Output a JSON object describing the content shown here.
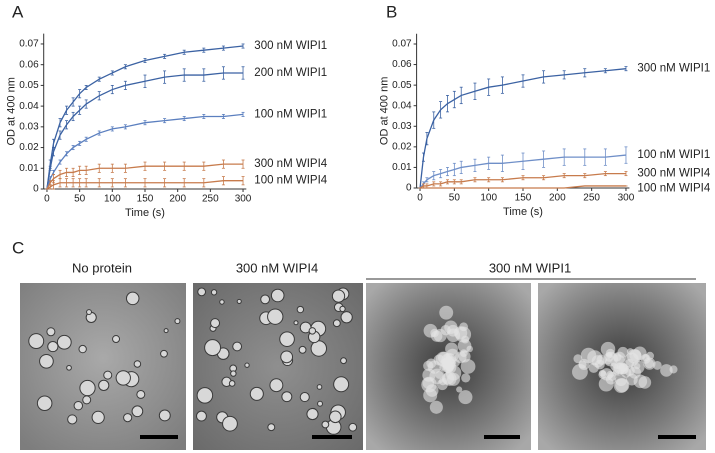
{
  "panel_labels": [
    "A",
    "B",
    "C"
  ],
  "chart_data": [
    {
      "type": "line",
      "xlabel": "Time (s)",
      "ylabel": "OD at 400 nm",
      "x": [
        0,
        5,
        10,
        20,
        30,
        40,
        50,
        60,
        80,
        100,
        120,
        150,
        180,
        210,
        240,
        270,
        300
      ],
      "xlim": [
        -5,
        305
      ],
      "xticks": [
        0,
        50,
        100,
        150,
        200,
        250,
        300
      ],
      "ylim": [
        0,
        0.075
      ],
      "yticks": [
        0,
        0.01,
        0.02,
        0.03,
        0.04,
        0.05,
        0.06,
        0.07
      ],
      "series": [
        {
          "name": "300 nM WIPI1",
          "color": "#3b62a3",
          "values": [
            0,
            0.012,
            0.022,
            0.032,
            0.038,
            0.042,
            0.046,
            0.049,
            0.053,
            0.056,
            0.059,
            0.062,
            0.064,
            0.066,
            0.067,
            0.068,
            0.069
          ],
          "errors": [
            0,
            0.002,
            0.002,
            0.002,
            0.002,
            0.002,
            0.002,
            0.001,
            0.001,
            0.001,
            0.001,
            0.001,
            0.001,
            0.001,
            0.001,
            0.001,
            0.001
          ]
        },
        {
          "name": "200 nM WIPI1",
          "color": "#3b62a3",
          "values": [
            0,
            0.01,
            0.018,
            0.026,
            0.031,
            0.035,
            0.038,
            0.041,
            0.045,
            0.048,
            0.05,
            0.052,
            0.054,
            0.055,
            0.055,
            0.056,
            0.056
          ],
          "errors": [
            0,
            0.001,
            0.002,
            0.002,
            0.002,
            0.002,
            0.002,
            0.002,
            0.002,
            0.002,
            0.002,
            0.003,
            0.003,
            0.003,
            0.003,
            0.003,
            0.003
          ]
        },
        {
          "name": "100 nM WIPI1",
          "color": "#5b7fbf",
          "values": [
            0,
            0.005,
            0.008,
            0.013,
            0.017,
            0.02,
            0.022,
            0.024,
            0.027,
            0.029,
            0.03,
            0.032,
            0.033,
            0.034,
            0.035,
            0.035,
            0.036
          ],
          "errors": [
            0,
            0.001,
            0.001,
            0.001,
            0.001,
            0.001,
            0.001,
            0.001,
            0.001,
            0.001,
            0.001,
            0.001,
            0.001,
            0.001,
            0.001,
            0.001,
            0.001
          ]
        },
        {
          "name": "300 nM WIPI4",
          "color": "#c77b4c",
          "values": [
            0,
            0.003,
            0.005,
            0.007,
            0.008,
            0.008,
            0.009,
            0.009,
            0.01,
            0.01,
            0.01,
            0.011,
            0.011,
            0.011,
            0.011,
            0.012,
            0.012
          ],
          "errors": [
            0,
            0.001,
            0.002,
            0.002,
            0.002,
            0.002,
            0.002,
            0.002,
            0.002,
            0.002,
            0.002,
            0.002,
            0.002,
            0.002,
            0.002,
            0.002,
            0.002
          ]
        },
        {
          "name": "100 nM WIPI4",
          "color": "#c77b4c",
          "values": [
            0,
            0.001,
            0.002,
            0.003,
            0.003,
            0.003,
            0.003,
            0.003,
            0.003,
            0.003,
            0.003,
            0.003,
            0.003,
            0.003,
            0.003,
            0.004,
            0.004
          ],
          "errors": [
            0,
            0.001,
            0.002,
            0.002,
            0.002,
            0.002,
            0.002,
            0.002,
            0.002,
            0.002,
            0.002,
            0.002,
            0.002,
            0.002,
            0.002,
            0.002,
            0.002
          ]
        }
      ]
    },
    {
      "type": "line",
      "xlabel": "Time (s)",
      "ylabel": "OD at 400 nm",
      "x": [
        0,
        5,
        10,
        20,
        30,
        40,
        50,
        60,
        80,
        100,
        120,
        150,
        180,
        210,
        240,
        270,
        300
      ],
      "xlim": [
        -5,
        305
      ],
      "xticks": [
        0,
        50,
        100,
        150,
        200,
        250,
        300
      ],
      "ylim": [
        0,
        0.075
      ],
      "yticks": [
        0,
        0.01,
        0.02,
        0.03,
        0.04,
        0.05,
        0.06,
        0.07
      ],
      "series": [
        {
          "name": "300 nM WIPI1",
          "color": "#3b62a3",
          "values": [
            0,
            0.015,
            0.024,
            0.033,
            0.038,
            0.041,
            0.043,
            0.045,
            0.047,
            0.049,
            0.05,
            0.052,
            0.054,
            0.055,
            0.056,
            0.057,
            0.058
          ],
          "errors": [
            0,
            0.002,
            0.003,
            0.004,
            0.004,
            0.004,
            0.004,
            0.004,
            0.004,
            0.004,
            0.004,
            0.003,
            0.003,
            0.002,
            0.002,
            0.001,
            0.001
          ]
        },
        {
          "name": "100 nM WIPI1",
          "color": "#6f8fc8",
          "values": [
            0,
            0.002,
            0.004,
            0.006,
            0.007,
            0.008,
            0.009,
            0.01,
            0.011,
            0.012,
            0.012,
            0.013,
            0.014,
            0.015,
            0.015,
            0.015,
            0.016
          ],
          "errors": [
            0,
            0.001,
            0.001,
            0.002,
            0.002,
            0.002,
            0.003,
            0.003,
            0.003,
            0.003,
            0.004,
            0.004,
            0.004,
            0.004,
            0.004,
            0.004,
            0.004
          ]
        },
        {
          "name": "300 nM WIPI4",
          "color": "#c77b4c",
          "values": [
            0,
            0.001,
            0.001,
            0.002,
            0.002,
            0.003,
            0.003,
            0.003,
            0.004,
            0.004,
            0.004,
            0.005,
            0.005,
            0.006,
            0.006,
            0.007,
            0.007
          ],
          "errors": [
            0,
            0.001,
            0.001,
            0.001,
            0.001,
            0.001,
            0.001,
            0.001,
            0.001,
            0.001,
            0.001,
            0.001,
            0.001,
            0.001,
            0.001,
            0.001,
            0.001
          ]
        },
        {
          "name": "100 nM WIPI4",
          "color": "#c77b4c",
          "values": [
            0,
            0,
            0,
            0,
            0,
            0,
            0,
            0,
            0,
            0,
            0,
            0,
            0,
            0,
            0.001,
            0.001,
            0.001
          ],
          "errors": [
            0,
            0,
            0,
            0,
            0,
            0,
            0,
            0,
            0,
            0,
            0,
            0,
            0,
            0,
            0,
            0,
            0
          ]
        }
      ]
    }
  ],
  "micrographs": {
    "captions": [
      "No protein",
      "300 nM WIPI4",
      "300 nM WIPI1"
    ]
  }
}
